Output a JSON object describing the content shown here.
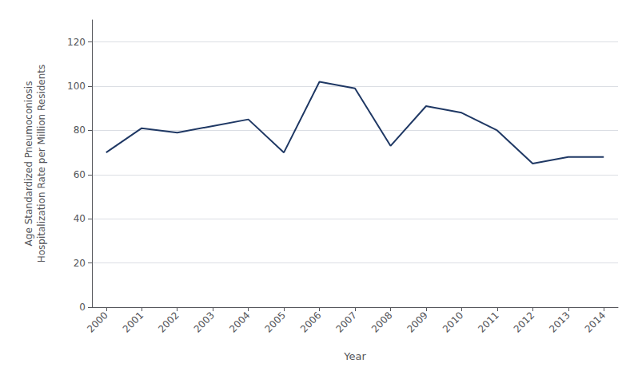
{
  "chart_data": {
    "type": "line",
    "x": [
      2000,
      2001,
      2002,
      2003,
      2004,
      2005,
      2006,
      2007,
      2008,
      2009,
      2010,
      2011,
      2012,
      2013,
      2014
    ],
    "values": [
      70,
      81,
      79,
      82,
      85,
      70,
      102,
      99,
      73,
      91,
      88,
      80,
      65,
      68,
      68
    ],
    "color": "#1F3864",
    "xlabel": "Year",
    "ylabel": "Age Standardized Pneumoconiosis\nHospitalization Rate per Million Residents",
    "xlim": [
      1999.6,
      2014.4
    ],
    "xticks": [
      2000,
      2001,
      2002,
      2003,
      2004,
      2005,
      2006,
      2007,
      2008,
      2009,
      2010,
      2011,
      2012,
      2013,
      2014
    ],
    "ylim": [
      0,
      130
    ],
    "yticks": [
      0,
      20,
      40,
      60,
      80,
      100,
      120
    ],
    "grid": true
  }
}
